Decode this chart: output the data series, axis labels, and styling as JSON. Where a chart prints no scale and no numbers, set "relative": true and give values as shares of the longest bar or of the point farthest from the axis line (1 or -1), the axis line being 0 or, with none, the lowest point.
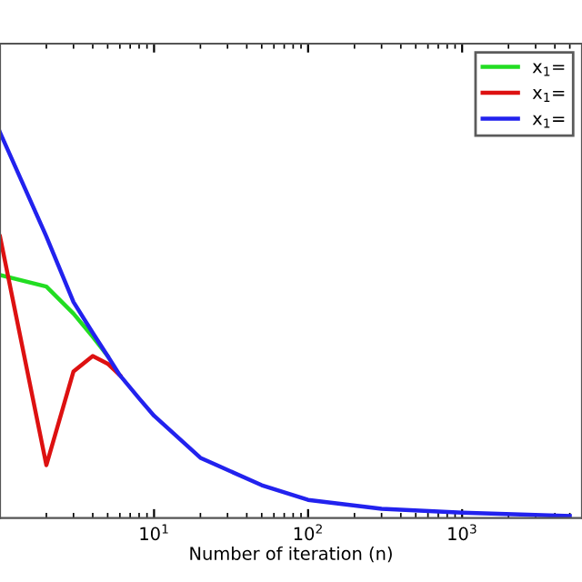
{
  "chart_data": {
    "type": "line",
    "xlabel": "Number of iteration (n)",
    "relative": true,
    "log": "x",
    "xlim": [
      1,
      6000
    ],
    "xticks": [
      {
        "value": 10,
        "label": "10$^{1}$"
      },
      {
        "value": 100,
        "label": "10$^{2}$"
      },
      {
        "value": 1000,
        "label": "10$^{3}$"
      }
    ],
    "x": [
      1,
      2,
      3,
      4,
      5,
      6,
      8,
      10,
      20,
      50,
      100,
      300,
      1000,
      5000
    ],
    "series": [
      {
        "name": "x$_{1}$=",
        "color": "#22dd22",
        "values": [
          0.63,
          0.6,
          0.53,
          0.47,
          0.42,
          null,
          null,
          null,
          null,
          null,
          null,
          null,
          null,
          null
        ]
      },
      {
        "name": "x$_{1}$=",
        "color": "#dd1111",
        "values": [
          0.73,
          0.137,
          0.38,
          0.42,
          0.4,
          0.37,
          null,
          null,
          null,
          null,
          null,
          null,
          null,
          null
        ]
      },
      {
        "name": "x$_{1}$=",
        "color": "#2222ee",
        "values": [
          1.0,
          0.73,
          0.56,
          0.48,
          0.42,
          0.37,
          0.31,
          0.265,
          0.156,
          0.085,
          0.047,
          0.024,
          0.014,
          0.005
        ]
      }
    ],
    "legend": "top right",
    "grid": false
  }
}
